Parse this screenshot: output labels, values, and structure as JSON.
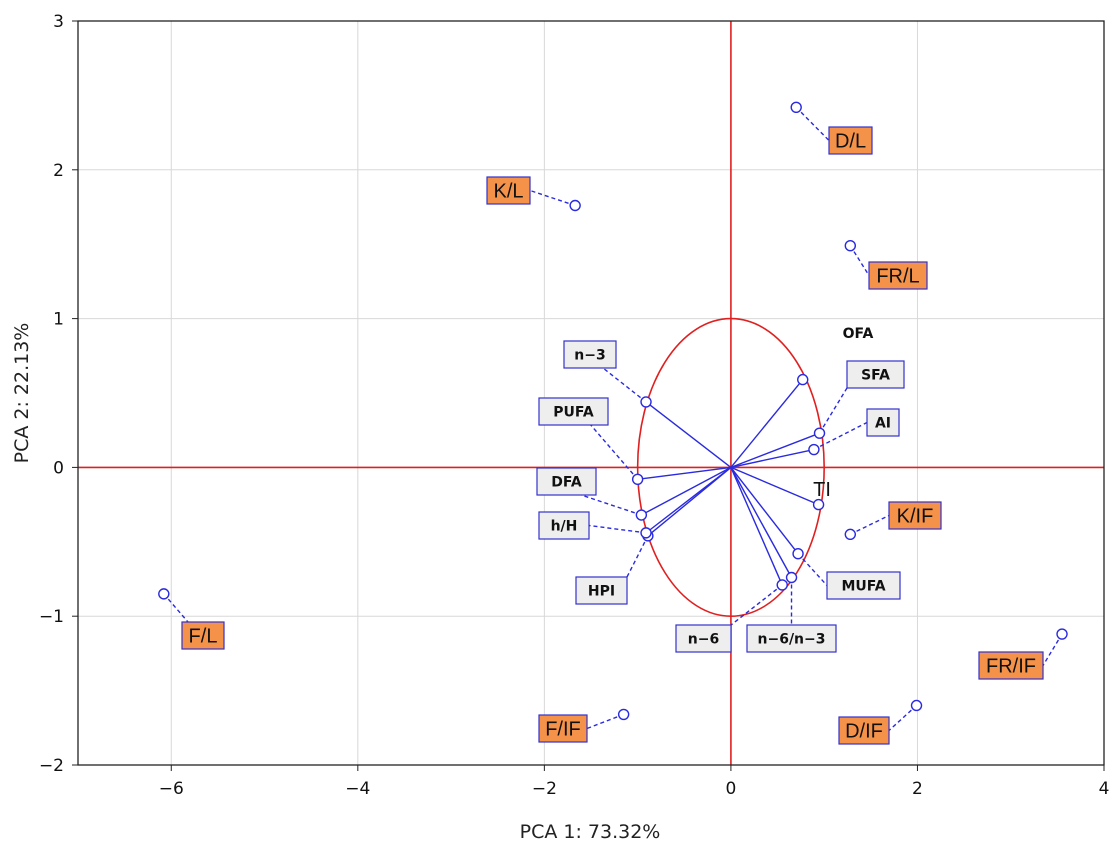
{
  "chart_data": {
    "type": "scatter",
    "title": "",
    "xlabel": "PCA 1: 73.32%",
    "ylabel": "PCA 2: 22.13%",
    "xlim": [
      -7,
      4
    ],
    "ylim": [
      -2,
      3
    ],
    "xticks": [
      -6,
      -4,
      -2,
      0,
      2,
      4
    ],
    "yticks": [
      -2,
      -1,
      0,
      1,
      2,
      3
    ],
    "grid": true,
    "reference_lines": {
      "x": 0,
      "y": 0,
      "color": "#e02020"
    },
    "unit_circle": {
      "cx": 0,
      "cy": 0,
      "rx": 1,
      "ry": 1
    },
    "colors": {
      "points": "#2a2ae0",
      "score_label_fill": "#f5924a",
      "score_label_border": "#3333cc",
      "var_label_fill": "#eeeeee",
      "var_label_border": "#3333cc",
      "axes": "#e02020",
      "grid": "#d8d8d8"
    },
    "scores": [
      {
        "label": "D/L",
        "x": 0.7,
        "y": 2.42
      },
      {
        "label": "K/L",
        "x": -1.67,
        "y": 1.76
      },
      {
        "label": "FR/L",
        "x": 1.28,
        "y": 1.49
      },
      {
        "label": "K/IF",
        "x": 1.28,
        "y": -0.45
      },
      {
        "label": "F/L",
        "x": -6.08,
        "y": -0.85
      },
      {
        "label": "FR/IF",
        "x": 3.55,
        "y": -1.12
      },
      {
        "label": "F/IF",
        "x": -1.15,
        "y": -1.66
      },
      {
        "label": "D/IF",
        "x": 1.99,
        "y": -1.6
      }
    ],
    "loadings": [
      {
        "label": "OFA",
        "x": 0.77,
        "y": 0.59
      },
      {
        "label": "SFA",
        "x": 0.95,
        "y": 0.23
      },
      {
        "label": "AI",
        "x": 0.89,
        "y": 0.12
      },
      {
        "label": "TI",
        "x": 0.94,
        "y": -0.25
      },
      {
        "label": "MUFA",
        "x": 0.72,
        "y": -0.58
      },
      {
        "label": "n−6/n−3",
        "x": 0.65,
        "y": -0.74
      },
      {
        "label": "n−6",
        "x": 0.55,
        "y": -0.79
      },
      {
        "label": "HPI",
        "x": -0.89,
        "y": -0.46
      },
      {
        "label": "h/H",
        "x": -0.91,
        "y": -0.44
      },
      {
        "label": "DFA",
        "x": -0.96,
        "y": -0.32
      },
      {
        "label": "PUFA",
        "x": -1.0,
        "y": -0.08
      },
      {
        "label": "n−3",
        "x": -0.91,
        "y": 0.44
      }
    ]
  }
}
